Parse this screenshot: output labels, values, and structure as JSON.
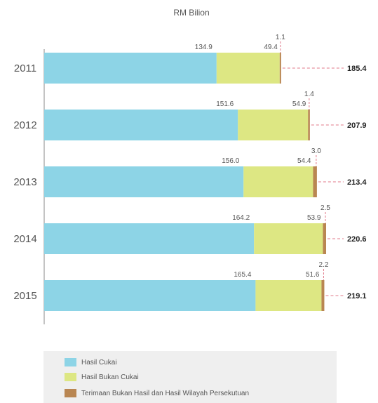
{
  "chart_data": {
    "type": "bar",
    "orientation": "horizontal",
    "stacked": true,
    "unit_label": "RM Bilion",
    "categories": [
      "2011",
      "2012",
      "2013",
      "2014",
      "2015"
    ],
    "series": [
      {
        "name": "Hasil Cukai",
        "color": "#8dd4e6",
        "values": [
          134.9,
          151.6,
          156.0,
          164.2,
          165.4
        ]
      },
      {
        "name": "Hasil Bukan Cukai",
        "color": "#dde783",
        "values": [
          49.4,
          54.9,
          54.4,
          53.9,
          51.6
        ]
      },
      {
        "name": "Terimaan Bukan Hasil dan Hasil Wilayah Persekutuan",
        "color": "#b98652",
        "values": [
          1.1,
          1.4,
          3.0,
          2.5,
          2.2
        ]
      }
    ],
    "value_labels": [
      [
        "134.9",
        "151.6",
        "156.0",
        "164.2",
        "165.4"
      ],
      [
        "49.4",
        "54.9",
        "54.4",
        "53.9",
        "51.6"
      ],
      [
        "1.1",
        "1.4",
        "3.0",
        "2.5",
        "2.2"
      ]
    ],
    "totals": [
      "185.4",
      "207.9",
      "213.4",
      "220.6",
      "219.1"
    ],
    "xlim": [
      0,
      220.6
    ],
    "grid": false,
    "legend_position": "bottom"
  }
}
